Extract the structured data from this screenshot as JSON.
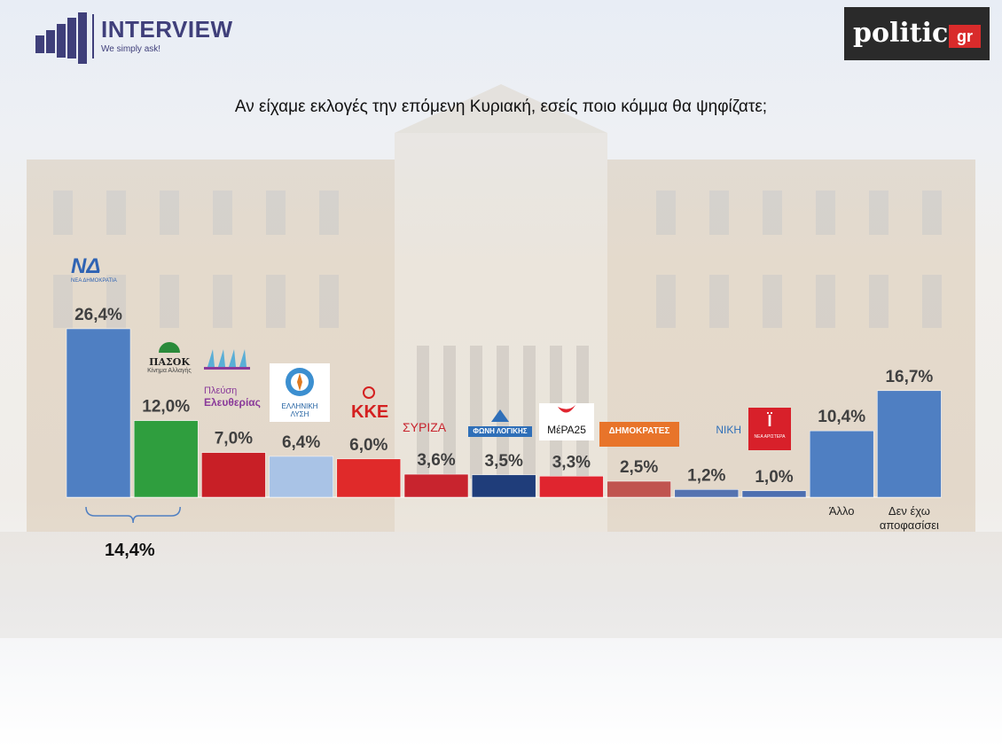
{
  "header": {
    "brand_name": "INTERVIEW",
    "brand_tagline": "We simply ask!",
    "publisher_name": "politic",
    "publisher_suffix": "gr"
  },
  "question": "Αν είχαμε εκλογές την επόμενη Κυριακή, εσείς ποιο κόμμα θα ψηφίζατε;",
  "chart_data": {
    "type": "bar",
    "title": "Αν είχαμε εκλογές την επόμενη Κυριακή, εσείς ποιο κόμμα θα ψηφίζατε;",
    "categories": [
      "ΝΔ",
      "ΠΑΣΟΚ",
      "Πλεύση Ελευθερίας",
      "Ελληνική Λύση",
      "ΚΚΕ",
      "ΣΥΡΙΖΑ",
      "Φωνή Λογικής",
      "ΜέΡΑ25",
      "Δημοκράτες",
      "ΝΙΚΗ",
      "Νέα Αριστερά",
      "Άλλο",
      "Δεν έχω αποφασίσει"
    ],
    "values": [
      26.4,
      12.0,
      7.0,
      6.4,
      6.0,
      3.6,
      3.5,
      3.3,
      2.5,
      1.2,
      1.0,
      10.4,
      16.7
    ],
    "value_labels": [
      "26,4%",
      "12,0%",
      "7,0%",
      "6,4%",
      "6,0%",
      "3,6%",
      "3,5%",
      "3,3%",
      "2,5%",
      "1,2%",
      "1,0%",
      "10,4%",
      "16,7%"
    ],
    "colors": [
      "#4f7fc2",
      "#2f9e3e",
      "#c81f26",
      "#a9c3e6",
      "#e02a2a",
      "#c8242e",
      "#1f3d7a",
      "#e0252f",
      "#c0544f",
      "#5573b0",
      "#4d6fb0",
      "#4f7fc2",
      "#4f7fc2"
    ],
    "category_labels_shown": {
      "11": "Άλλο",
      "12": "Δεν έχω αποφασίσει"
    },
    "ylim": [
      0,
      30
    ],
    "grid": false,
    "legend": "none",
    "annotation": {
      "bracket_over": [
        "ΝΔ",
        "ΠΑΣΟΚ"
      ],
      "text": "14,4%"
    }
  },
  "logos": {
    "nd": "ΝΔ",
    "nd_sub": "ΝΕΑ ΔΗΜΟΚΡΑΤΙΑ",
    "pasok": "ΠΑΣΟΚ",
    "pasok_sub": "Κίνημα Αλλαγής",
    "plefsi_1": "Πλεύση",
    "plefsi_2": "Ελευθερίας",
    "ellisi": "ΕΛΛΗΝΙΚΗ ΛΥΣΗ",
    "kke": "ΚΚΕ",
    "syriza": "ΣΥΡΙΖΑ",
    "foni": "ΦΩΝΗ ΛΟΓΙΚΗΣ",
    "mera": "ΜέΡΑ25",
    "dimokrates": "ΔΗΜΟΚΡΑΤΕΣ",
    "niki": "ΝΙΚΗ",
    "nea_aristera": "ΝΕΑ ΑΡΙΣΤΕΡΑ"
  }
}
